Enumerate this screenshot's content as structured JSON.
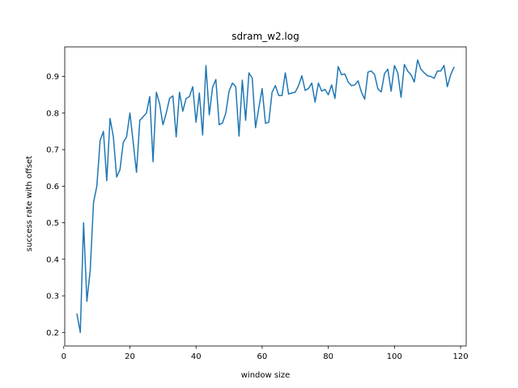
{
  "chart_data": {
    "type": "line",
    "title": "sdram_w2.log",
    "xlabel": "window size",
    "ylabel": "success rate with offset",
    "xlim": [
      0.3,
      121.7
    ],
    "ylim": [
      0.163,
      0.981
    ],
    "xticks": [
      0,
      20,
      40,
      60,
      80,
      100,
      120
    ],
    "yticks": [
      0.2,
      0.3,
      0.4,
      0.5,
      0.6,
      0.7,
      0.8,
      0.9
    ],
    "xtick_labels": [
      "0",
      "20",
      "40",
      "60",
      "80",
      "100",
      "120"
    ],
    "ytick_labels": [
      "0.2",
      "0.3",
      "0.4",
      "0.5",
      "0.6",
      "0.7",
      "0.8",
      "0.9"
    ],
    "grid": false,
    "series": [
      {
        "color": "#1f77b4",
        "x": [
          4,
          5,
          6,
          7,
          8,
          9,
          10,
          11,
          12,
          13,
          14,
          15,
          16,
          17,
          18,
          19,
          20,
          21,
          22,
          23,
          24,
          25,
          26,
          27,
          28,
          29,
          30,
          31,
          32,
          33,
          34,
          35,
          36,
          37,
          38,
          39,
          40,
          41,
          42,
          43,
          44,
          45,
          46,
          47,
          48,
          49,
          50,
          51,
          52,
          53,
          54,
          55,
          56,
          57,
          58,
          59,
          60,
          61,
          62,
          63,
          64,
          65,
          66,
          67,
          68,
          69,
          70,
          71,
          72,
          73,
          74,
          75,
          76,
          77,
          78,
          79,
          80,
          81,
          82,
          83,
          84,
          85,
          86,
          87,
          88,
          89,
          90,
          91,
          92,
          93,
          94,
          95,
          96,
          97,
          98,
          99,
          100,
          101,
          102,
          103,
          104,
          105,
          106,
          107,
          108,
          109,
          110,
          111,
          112,
          113,
          114,
          115,
          116,
          117,
          118
        ],
        "y": [
          0.25,
          0.2,
          0.5,
          0.285,
          0.37,
          0.555,
          0.6,
          0.725,
          0.75,
          0.615,
          0.785,
          0.735,
          0.625,
          0.645,
          0.72,
          0.735,
          0.8,
          0.72,
          0.638,
          0.78,
          0.79,
          0.8,
          0.845,
          0.667,
          0.857,
          0.825,
          0.768,
          0.8,
          0.84,
          0.847,
          0.735,
          0.857,
          0.805,
          0.84,
          0.845,
          0.872,
          0.775,
          0.855,
          0.74,
          0.93,
          0.795,
          0.87,
          0.892,
          0.768,
          0.773,
          0.8,
          0.86,
          0.882,
          0.872,
          0.737,
          0.89,
          0.78,
          0.91,
          0.895,
          0.76,
          0.815,
          0.867,
          0.772,
          0.775,
          0.857,
          0.875,
          0.848,
          0.848,
          0.91,
          0.852,
          0.855,
          0.857,
          0.875,
          0.902,
          0.862,
          0.867,
          0.882,
          0.83,
          0.882,
          0.86,
          0.865,
          0.85,
          0.877,
          0.84,
          0.927,
          0.905,
          0.907,
          0.885,
          0.875,
          0.877,
          0.888,
          0.858,
          0.838,
          0.912,
          0.915,
          0.905,
          0.866,
          0.858,
          0.908,
          0.92,
          0.86,
          0.93,
          0.91,
          0.843,
          0.933,
          0.915,
          0.905,
          0.885,
          0.945,
          0.92,
          0.91,
          0.902,
          0.9,
          0.895,
          0.915,
          0.915,
          0.93,
          0.872,
          0.905,
          0.925
        ]
      }
    ]
  }
}
